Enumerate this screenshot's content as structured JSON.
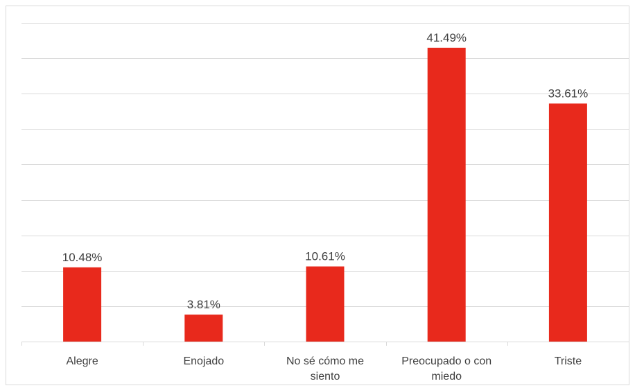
{
  "chart_data": {
    "type": "bar",
    "categories": [
      [
        "Alegre"
      ],
      [
        "Enojado"
      ],
      [
        "No sé cómo me",
        "siento"
      ],
      [
        "Preocupado o con",
        "miedo"
      ],
      [
        "Triste"
      ]
    ],
    "values": [
      10.48,
      3.81,
      10.61,
      41.49,
      33.61
    ],
    "data_labels": [
      "10.48%",
      "3.81%",
      "10.61%",
      "41.49%",
      "33.61%"
    ],
    "ylim": [
      0,
      45
    ],
    "grid": true,
    "gridline_step": 5,
    "colors": {
      "bar": "#e8291c",
      "grid": "#d9d9d9",
      "text": "#404040"
    },
    "legend": "none"
  }
}
